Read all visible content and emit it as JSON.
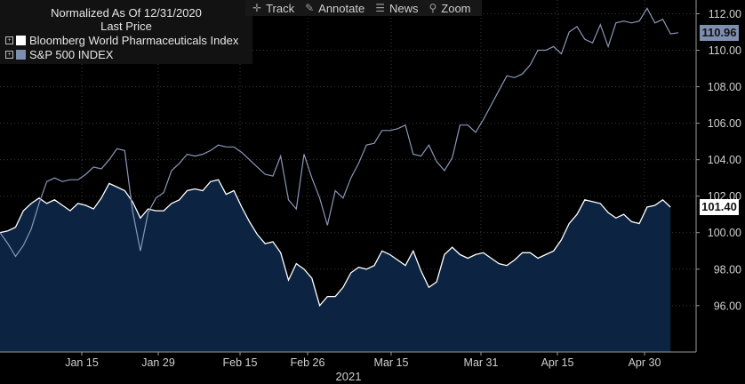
{
  "legend": {
    "title": "Normalized As Of 12/31/2020",
    "subtitle": "Last Price",
    "series_labels": [
      "Bloomberg World Pharmaceuticals Index",
      "S&P 500 INDEX"
    ]
  },
  "toolbar": {
    "track": "Track",
    "annotate": "Annotate",
    "news": "News",
    "zoom": "Zoom"
  },
  "colors": {
    "pharma_line": "#ffffff",
    "pharma_fill": "#0c2442",
    "sp500_line": "#8a97b8",
    "sp500_tag": "#7e8eaf",
    "background": "#000000",
    "grid": "#3a3a3a"
  },
  "chart_data": {
    "type": "area",
    "xlabel": "2021",
    "x_ticks": [
      "Jan 15",
      "Jan 29",
      "Feb 15",
      "Feb 26",
      "Mar 15",
      "Mar 31",
      "Apr 15",
      "Apr 30"
    ],
    "y_ticks": [
      "96.00",
      "98.00",
      "100.00",
      "102.00",
      "104.00",
      "106.00",
      "108.00",
      "110.00",
      "112.00"
    ],
    "ylim": [
      94.5,
      113
    ],
    "grid": true,
    "last_value_tags": [
      "101.40",
      "110.96"
    ],
    "series": [
      {
        "name": "Bloomberg World Pharmaceuticals Index",
        "values": [
          100.0,
          100.1,
          100.3,
          101.2,
          101.6,
          101.9,
          101.6,
          101.8,
          101.5,
          101.2,
          101.6,
          101.5,
          101.3,
          101.9,
          102.7,
          102.5,
          102.3,
          101.7,
          100.8,
          101.3,
          101.2,
          101.2,
          101.6,
          101.8,
          102.3,
          102.4,
          102.3,
          102.8,
          102.9,
          102.1,
          102.3,
          101.4,
          100.6,
          99.9,
          99.4,
          99.5,
          98.9,
          97.4,
          98.3,
          98.0,
          97.5,
          96.0,
          96.5,
          96.5,
          97.0,
          97.8,
          98.1,
          98.0,
          98.2,
          99.0,
          98.8,
          98.5,
          98.2,
          99.0,
          97.9,
          97.0,
          97.3,
          98.8,
          99.2,
          98.8,
          98.6,
          98.8,
          98.9,
          98.6,
          98.3,
          98.2,
          98.5,
          98.9,
          98.9,
          98.6,
          98.8,
          99.0,
          99.6,
          100.5,
          101.0,
          101.8,
          101.7,
          101.6,
          101.1,
          100.8,
          101.0,
          100.6,
          100.5,
          101.4,
          101.5,
          101.8,
          101.4
        ]
      },
      {
        "name": "S&P 500 INDEX",
        "values": [
          100.0,
          99.4,
          98.7,
          99.3,
          100.2,
          101.6,
          102.8,
          103.0,
          102.8,
          102.9,
          102.9,
          103.2,
          103.6,
          103.5,
          104.0,
          104.6,
          104.5,
          101.2,
          99.0,
          101.1,
          101.9,
          102.2,
          103.4,
          103.8,
          104.3,
          104.2,
          104.3,
          104.5,
          104.8,
          104.7,
          104.7,
          104.4,
          104.0,
          103.6,
          103.2,
          103.1,
          104.2,
          101.8,
          101.3,
          104.3,
          103.0,
          101.9,
          100.4,
          102.3,
          101.9,
          103.0,
          103.8,
          104.8,
          104.9,
          105.6,
          105.6,
          105.7,
          105.9,
          104.3,
          104.2,
          104.8,
          103.9,
          103.4,
          104.1,
          105.9,
          105.9,
          105.5,
          106.2,
          107.0,
          107.8,
          108.6,
          108.5,
          108.7,
          109.2,
          110.0,
          110.0,
          110.2,
          109.8,
          111.0,
          111.3,
          110.6,
          110.4,
          111.4,
          110.2,
          111.5,
          111.6,
          111.5,
          111.6,
          112.3,
          111.5,
          111.7,
          110.9,
          110.96
        ]
      }
    ]
  }
}
